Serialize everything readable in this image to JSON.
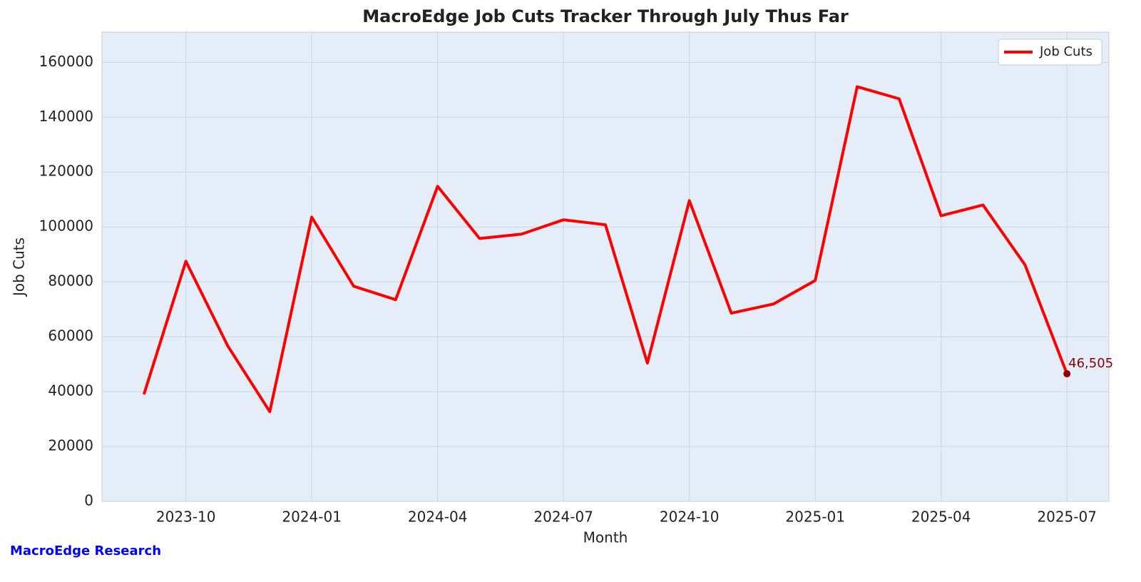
{
  "chart_data": {
    "type": "line",
    "title": "MacroEdge Job Cuts Tracker Through July Thus Far",
    "x_label": "Month",
    "y_label": "Job Cuts",
    "footer": "MacroEdge Research",
    "x": [
      "2023-09",
      "2023-10",
      "2023-11",
      "2023-12",
      "2024-01",
      "2024-02",
      "2024-03",
      "2024-04",
      "2024-05",
      "2024-06",
      "2024-07",
      "2024-08",
      "2024-09",
      "2024-10",
      "2024-11",
      "2024-12",
      "2025-01",
      "2025-02",
      "2025-03",
      "2025-04",
      "2025-05",
      "2025-06",
      "2025-07"
    ],
    "series": [
      {
        "name": "Job Cuts",
        "color": "#ff0000",
        "values": [
          39000,
          87500,
          56600,
          32700,
          103600,
          78400,
          73500,
          114800,
          95800,
          97400,
          102600,
          100800,
          50400,
          109600,
          68600,
          71900,
          80500,
          151100,
          146700,
          104100,
          108000,
          86200,
          46505
        ],
        "value_labels": [
          null,
          null,
          null,
          null,
          null,
          null,
          null,
          null,
          null,
          null,
          null,
          null,
          null,
          null,
          null,
          null,
          null,
          null,
          null,
          null,
          null,
          null,
          "46,505"
        ],
        "label_color": "#8b0000"
      }
    ],
    "xlim": [
      "2023-08",
      "2025-08"
    ],
    "xticks": [
      "2023-10",
      "2024-01",
      "2024-04",
      "2024-07",
      "2024-10",
      "2025-01",
      "2025-04",
      "2025-07"
    ],
    "ylim": [
      0,
      171000
    ],
    "yticks": [
      0,
      20000,
      40000,
      60000,
      80000,
      100000,
      120000,
      140000,
      160000
    ],
    "grid": true,
    "legend": "upper right"
  }
}
